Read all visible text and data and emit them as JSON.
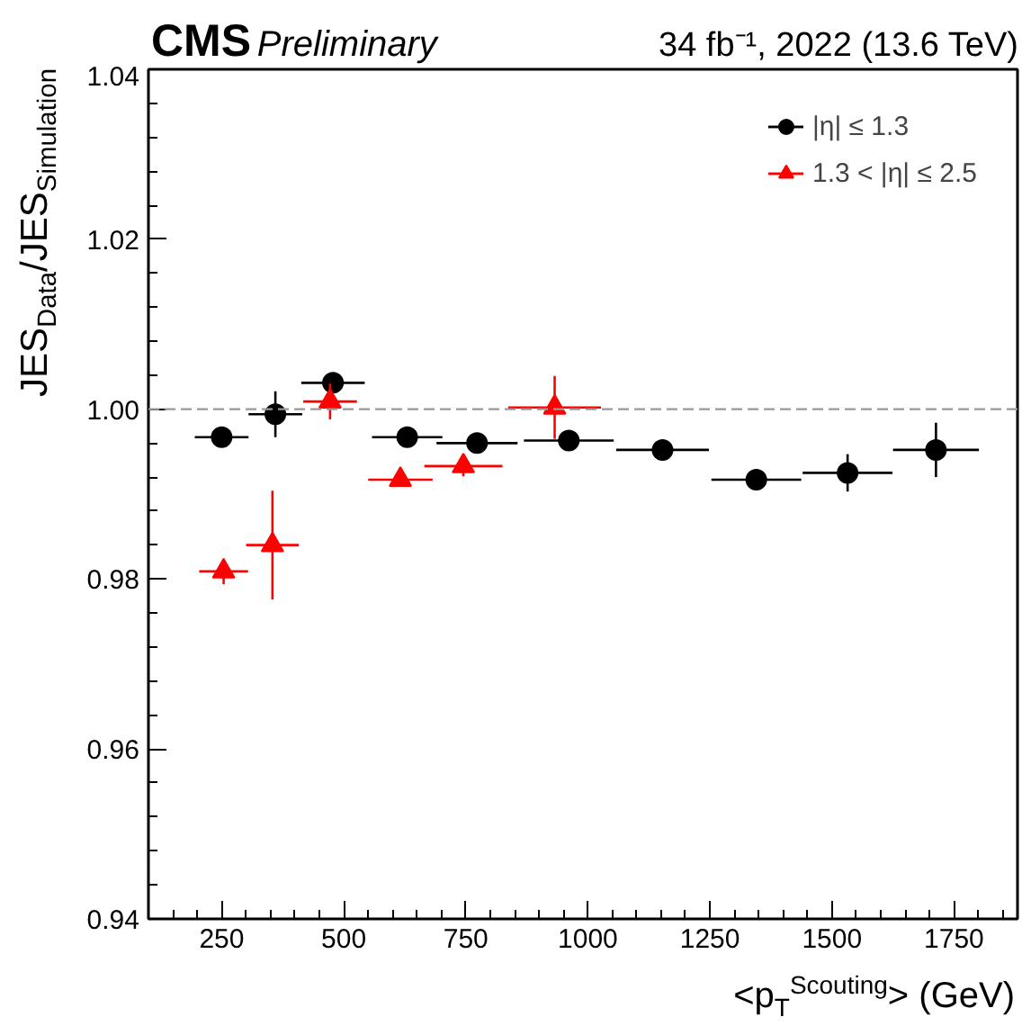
{
  "chart_data": {
    "type": "scatter",
    "title": "CMS",
    "subtitle": "Preliminary",
    "annotations": [
      "34 fb⁻¹, 2022 (13.6 TeV)"
    ],
    "xlabel": "<p$_{T}$$^{Scouting}$> (GeV)",
    "ylabel": "JES$_{Data}$/JES$_{Simulation}$",
    "xlim": [
      100,
      1880
    ],
    "xticks": [
      250,
      500,
      750,
      1000,
      1250,
      1500,
      1750
    ],
    "ylim": [
      0.94,
      1.04
    ],
    "yticks": [
      {
        "value": 0.94,
        "label": "0.94"
      },
      {
        "value": 0.96,
        "label": "0.96"
      },
      {
        "value": 0.98,
        "label": "0.98"
      },
      {
        "value": 1.0,
        "label": "1.00"
      },
      {
        "value": 1.02,
        "label": "1.02"
      },
      {
        "value": 1.04,
        "label": "1.04"
      }
    ],
    "grid": false,
    "legend": "top right",
    "ref_lines": [
      {
        "axis": "y",
        "value": 1.0,
        "label": null,
        "color": "#999999",
        "line_style": "dashed"
      }
    ],
    "series": [
      {
        "name": "|η| ≤ 1.3",
        "color": "#000000",
        "marker": "circle",
        "x": [
          250,
          360,
          478,
          630,
          773,
          961,
          1153,
          1345,
          1532,
          1713
        ],
        "values": [
          0.9967,
          0.9994,
          1.0031,
          0.9967,
          0.996,
          0.9963,
          0.9952,
          0.9917,
          0.9925,
          0.9952
        ],
        "errors": [
          0.0005,
          0.0027,
          0.0005,
          0.0005,
          0.0006,
          0.0005,
          0.0005,
          0.0007,
          0.0022,
          0.0032
        ],
        "xerrors": [
          55,
          55,
          65,
          72,
          83,
          92,
          95,
          92,
          92,
          88
        ]
      },
      {
        "name": "1.3 < |η| ≤ 2.5",
        "color": "#ff0000",
        "marker": "triangle",
        "x": [
          254,
          354,
          472,
          616,
          745,
          932
        ],
        "values": [
          0.9809,
          0.984,
          1.0009,
          0.9917,
          0.9933,
          1.0002
        ],
        "errors": [
          0.0015,
          0.0064,
          0.0021,
          0.0008,
          0.0012,
          0.0037
        ],
        "xerrors": [
          50,
          54,
          55,
          66,
          80,
          95
        ]
      }
    ]
  }
}
